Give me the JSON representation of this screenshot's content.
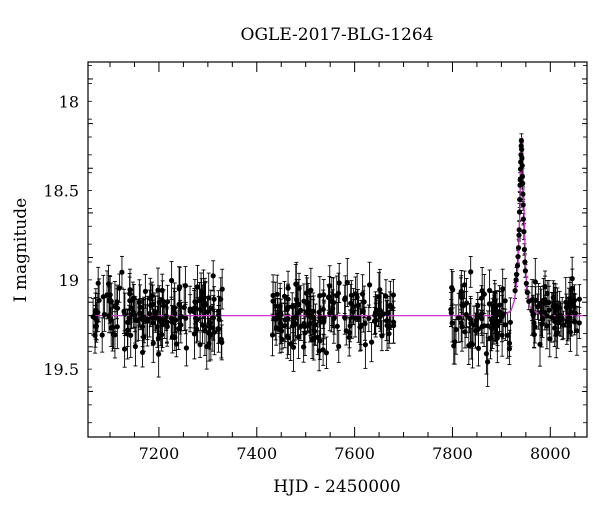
{
  "chart_data": {
    "type": "scatter",
    "title": "OGLE-2017-BLG-1264",
    "xlabel": "HJD - 2450000",
    "ylabel": "I magnitude",
    "xlim": [
      7055,
      8075
    ],
    "ylim": [
      19.88,
      17.78
    ],
    "y_inverted": true,
    "x_ticks": [
      7200,
      7400,
      7600,
      7800,
      8000
    ],
    "x_tick_labels": [
      "7200",
      "7400",
      "7600",
      "7800",
      "8000"
    ],
    "y_ticks": [
      18,
      18.5,
      19,
      19.5
    ],
    "y_tick_labels": [
      "18",
      "18.5",
      "19",
      "19.5"
    ],
    "grid": false,
    "marker_color": "#000000",
    "model_color": "#cc33cc",
    "baseline_mag": 19.2,
    "season_ranges": [
      [
        7062,
        7330
      ],
      [
        7432,
        7680
      ],
      [
        7795,
        8062
      ]
    ],
    "model_curve": {
      "name": "",
      "points": [
        [
          7055,
          19.2
        ],
        [
          7880,
          19.2
        ],
        [
          7910,
          19.19
        ],
        [
          7920,
          19.17
        ],
        [
          7926,
          19.12
        ],
        [
          7930,
          19.05
        ],
        [
          7934,
          18.92
        ],
        [
          7937,
          18.7
        ],
        [
          7939,
          18.45
        ],
        [
          7940.5,
          18.28
        ],
        [
          7942,
          18.2
        ],
        [
          7943.5,
          18.28
        ],
        [
          7945,
          18.45
        ],
        [
          7947,
          18.7
        ],
        [
          7950,
          18.95
        ],
        [
          7953,
          19.08
        ],
        [
          7958,
          19.15
        ],
        [
          7970,
          19.18
        ],
        [
          7990,
          19.2
        ],
        [
          8075,
          19.2
        ]
      ]
    },
    "event_points": [
      [
        7928,
        19.06
      ],
      [
        7930,
        19.0
      ],
      [
        7931,
        18.97
      ],
      [
        7933,
        18.92
      ],
      [
        7934,
        18.87
      ],
      [
        7935,
        18.82
      ],
      [
        7936,
        18.75
      ],
      [
        7936.5,
        18.72
      ],
      [
        7937,
        18.62
      ],
      [
        7937.5,
        18.55
      ],
      [
        7938,
        18.47
      ],
      [
        7938.5,
        18.44
      ],
      [
        7939,
        18.38
      ],
      [
        7939.5,
        18.34
      ],
      [
        7940,
        18.3
      ],
      [
        7940.5,
        18.25
      ],
      [
        7941,
        18.22
      ],
      [
        7941.5,
        18.27
      ],
      [
        7942,
        18.32
      ],
      [
        7942.5,
        18.36
      ],
      [
        7943,
        18.42
      ],
      [
        7943.5,
        18.46
      ],
      [
        7944,
        18.52
      ],
      [
        7944.5,
        18.58
      ],
      [
        7945,
        18.66
      ],
      [
        7946,
        18.73
      ],
      [
        7947,
        18.83
      ],
      [
        7948,
        18.9
      ],
      [
        7949,
        18.95
      ],
      [
        7951,
        19.02
      ],
      [
        7953,
        19.07
      ],
      [
        7956,
        19.12
      ]
    ]
  }
}
